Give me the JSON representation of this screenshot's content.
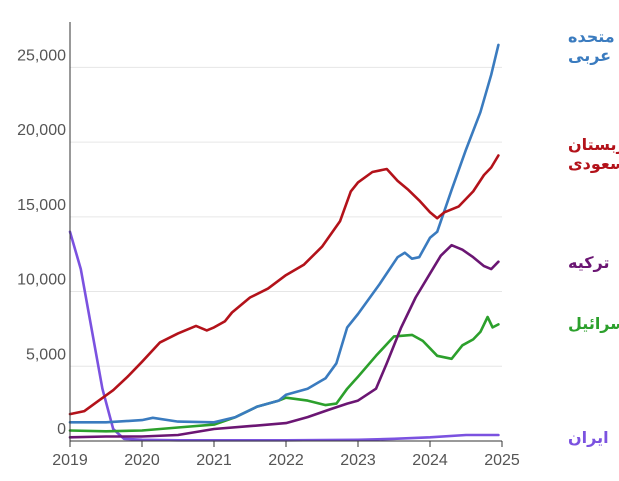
{
  "chart_data": {
    "type": "line",
    "title": "",
    "xlabel": "",
    "ylabel": "",
    "xlim": [
      2019,
      2025
    ],
    "ylim": [
      0,
      27500
    ],
    "grid": true,
    "legend": "inline-right",
    "x_ticks": [
      "2019",
      "2020",
      "2021",
      "2022",
      "2023",
      "2024",
      "2025"
    ],
    "y_ticks": [
      "0",
      "5,000",
      "10,000",
      "15,000",
      "20,000",
      "25,000"
    ],
    "series": [
      {
        "name": "امارات متحده عربی",
        "color": "#3a7bbf",
        "points": [
          [
            2019.0,
            1250
          ],
          [
            2019.5,
            1250
          ],
          [
            2020.0,
            1400
          ],
          [
            2020.15,
            1550
          ],
          [
            2020.5,
            1300
          ],
          [
            2021.0,
            1250
          ],
          [
            2021.3,
            1600
          ],
          [
            2021.6,
            2300
          ],
          [
            2021.9,
            2700
          ],
          [
            2022.0,
            3100
          ],
          [
            2022.3,
            3500
          ],
          [
            2022.55,
            4200
          ],
          [
            2022.7,
            5200
          ],
          [
            2022.85,
            7600
          ],
          [
            2023.0,
            8500
          ],
          [
            2023.3,
            10500
          ],
          [
            2023.55,
            12300
          ],
          [
            2023.65,
            12600
          ],
          [
            2023.75,
            12200
          ],
          [
            2023.85,
            12300
          ],
          [
            2024.0,
            13600
          ],
          [
            2024.1,
            14000
          ],
          [
            2024.3,
            16800
          ],
          [
            2024.5,
            19500
          ],
          [
            2024.7,
            22000
          ],
          [
            2024.85,
            24500
          ],
          [
            2024.95,
            26500
          ]
        ]
      },
      {
        "name": "عربستان سعودی",
        "color": "#b3121a",
        "points": [
          [
            2019.0,
            1800
          ],
          [
            2019.2,
            2000
          ],
          [
            2019.4,
            2700
          ],
          [
            2019.6,
            3400
          ],
          [
            2019.8,
            4300
          ],
          [
            2020.0,
            5300
          ],
          [
            2020.25,
            6600
          ],
          [
            2020.5,
            7200
          ],
          [
            2020.75,
            7700
          ],
          [
            2020.9,
            7400
          ],
          [
            2021.0,
            7600
          ],
          [
            2021.15,
            8000
          ],
          [
            2021.25,
            8600
          ],
          [
            2021.5,
            9600
          ],
          [
            2021.75,
            10200
          ],
          [
            2022.0,
            11100
          ],
          [
            2022.25,
            11800
          ],
          [
            2022.5,
            13000
          ],
          [
            2022.75,
            14700
          ],
          [
            2022.9,
            16700
          ],
          [
            2023.0,
            17300
          ],
          [
            2023.2,
            18000
          ],
          [
            2023.4,
            18200
          ],
          [
            2023.55,
            17400
          ],
          [
            2023.7,
            16800
          ],
          [
            2023.85,
            16100
          ],
          [
            2024.0,
            15300
          ],
          [
            2024.1,
            14900
          ],
          [
            2024.2,
            15300
          ],
          [
            2024.4,
            15700
          ],
          [
            2024.6,
            16700
          ],
          [
            2024.75,
            17800
          ],
          [
            2024.85,
            18300
          ],
          [
            2024.95,
            19100
          ]
        ]
      },
      {
        "name": "ترکیه",
        "color": "#6b1673",
        "points": [
          [
            2019.0,
            250
          ],
          [
            2019.5,
            300
          ],
          [
            2020.0,
            300
          ],
          [
            2020.5,
            400
          ],
          [
            2021.0,
            800
          ],
          [
            2021.5,
            1000
          ],
          [
            2022.0,
            1200
          ],
          [
            2022.3,
            1600
          ],
          [
            2022.6,
            2100
          ],
          [
            2022.85,
            2500
          ],
          [
            2023.0,
            2700
          ],
          [
            2023.25,
            3500
          ],
          [
            2023.4,
            5200
          ],
          [
            2023.6,
            7600
          ],
          [
            2023.8,
            9600
          ],
          [
            2024.0,
            11200
          ],
          [
            2024.15,
            12400
          ],
          [
            2024.3,
            13100
          ],
          [
            2024.45,
            12800
          ],
          [
            2024.6,
            12300
          ],
          [
            2024.75,
            11700
          ],
          [
            2024.85,
            11500
          ],
          [
            2024.95,
            12000
          ]
        ]
      },
      {
        "name": "اسرائیل",
        "color": "#2ca02c",
        "points": [
          [
            2019.0,
            700
          ],
          [
            2019.5,
            650
          ],
          [
            2020.0,
            700
          ],
          [
            2020.5,
            900
          ],
          [
            2021.0,
            1100
          ],
          [
            2021.3,
            1600
          ],
          [
            2021.6,
            2300
          ],
          [
            2021.9,
            2700
          ],
          [
            2022.0,
            2900
          ],
          [
            2022.3,
            2700
          ],
          [
            2022.55,
            2400
          ],
          [
            2022.7,
            2500
          ],
          [
            2022.85,
            3500
          ],
          [
            2023.0,
            4300
          ],
          [
            2023.25,
            5700
          ],
          [
            2023.5,
            7000
          ],
          [
            2023.75,
            7100
          ],
          [
            2023.9,
            6700
          ],
          [
            2024.0,
            6200
          ],
          [
            2024.1,
            5700
          ],
          [
            2024.3,
            5500
          ],
          [
            2024.45,
            6400
          ],
          [
            2024.6,
            6800
          ],
          [
            2024.7,
            7300
          ],
          [
            2024.8,
            8300
          ],
          [
            2024.87,
            7600
          ],
          [
            2024.95,
            7800
          ]
        ]
      },
      {
        "name": "ایران",
        "color": "#7b52e0",
        "points": [
          [
            2019.0,
            14000
          ],
          [
            2019.15,
            11500
          ],
          [
            2019.3,
            7500
          ],
          [
            2019.45,
            3500
          ],
          [
            2019.6,
            800
          ],
          [
            2019.75,
            150
          ],
          [
            2020.0,
            80
          ],
          [
            2020.5,
            50
          ],
          [
            2021.0,
            50
          ],
          [
            2022.0,
            50
          ],
          [
            2023.0,
            80
          ],
          [
            2023.5,
            150
          ],
          [
            2024.0,
            250
          ],
          [
            2024.5,
            400
          ],
          [
            2024.95,
            400
          ]
        ]
      }
    ]
  }
}
